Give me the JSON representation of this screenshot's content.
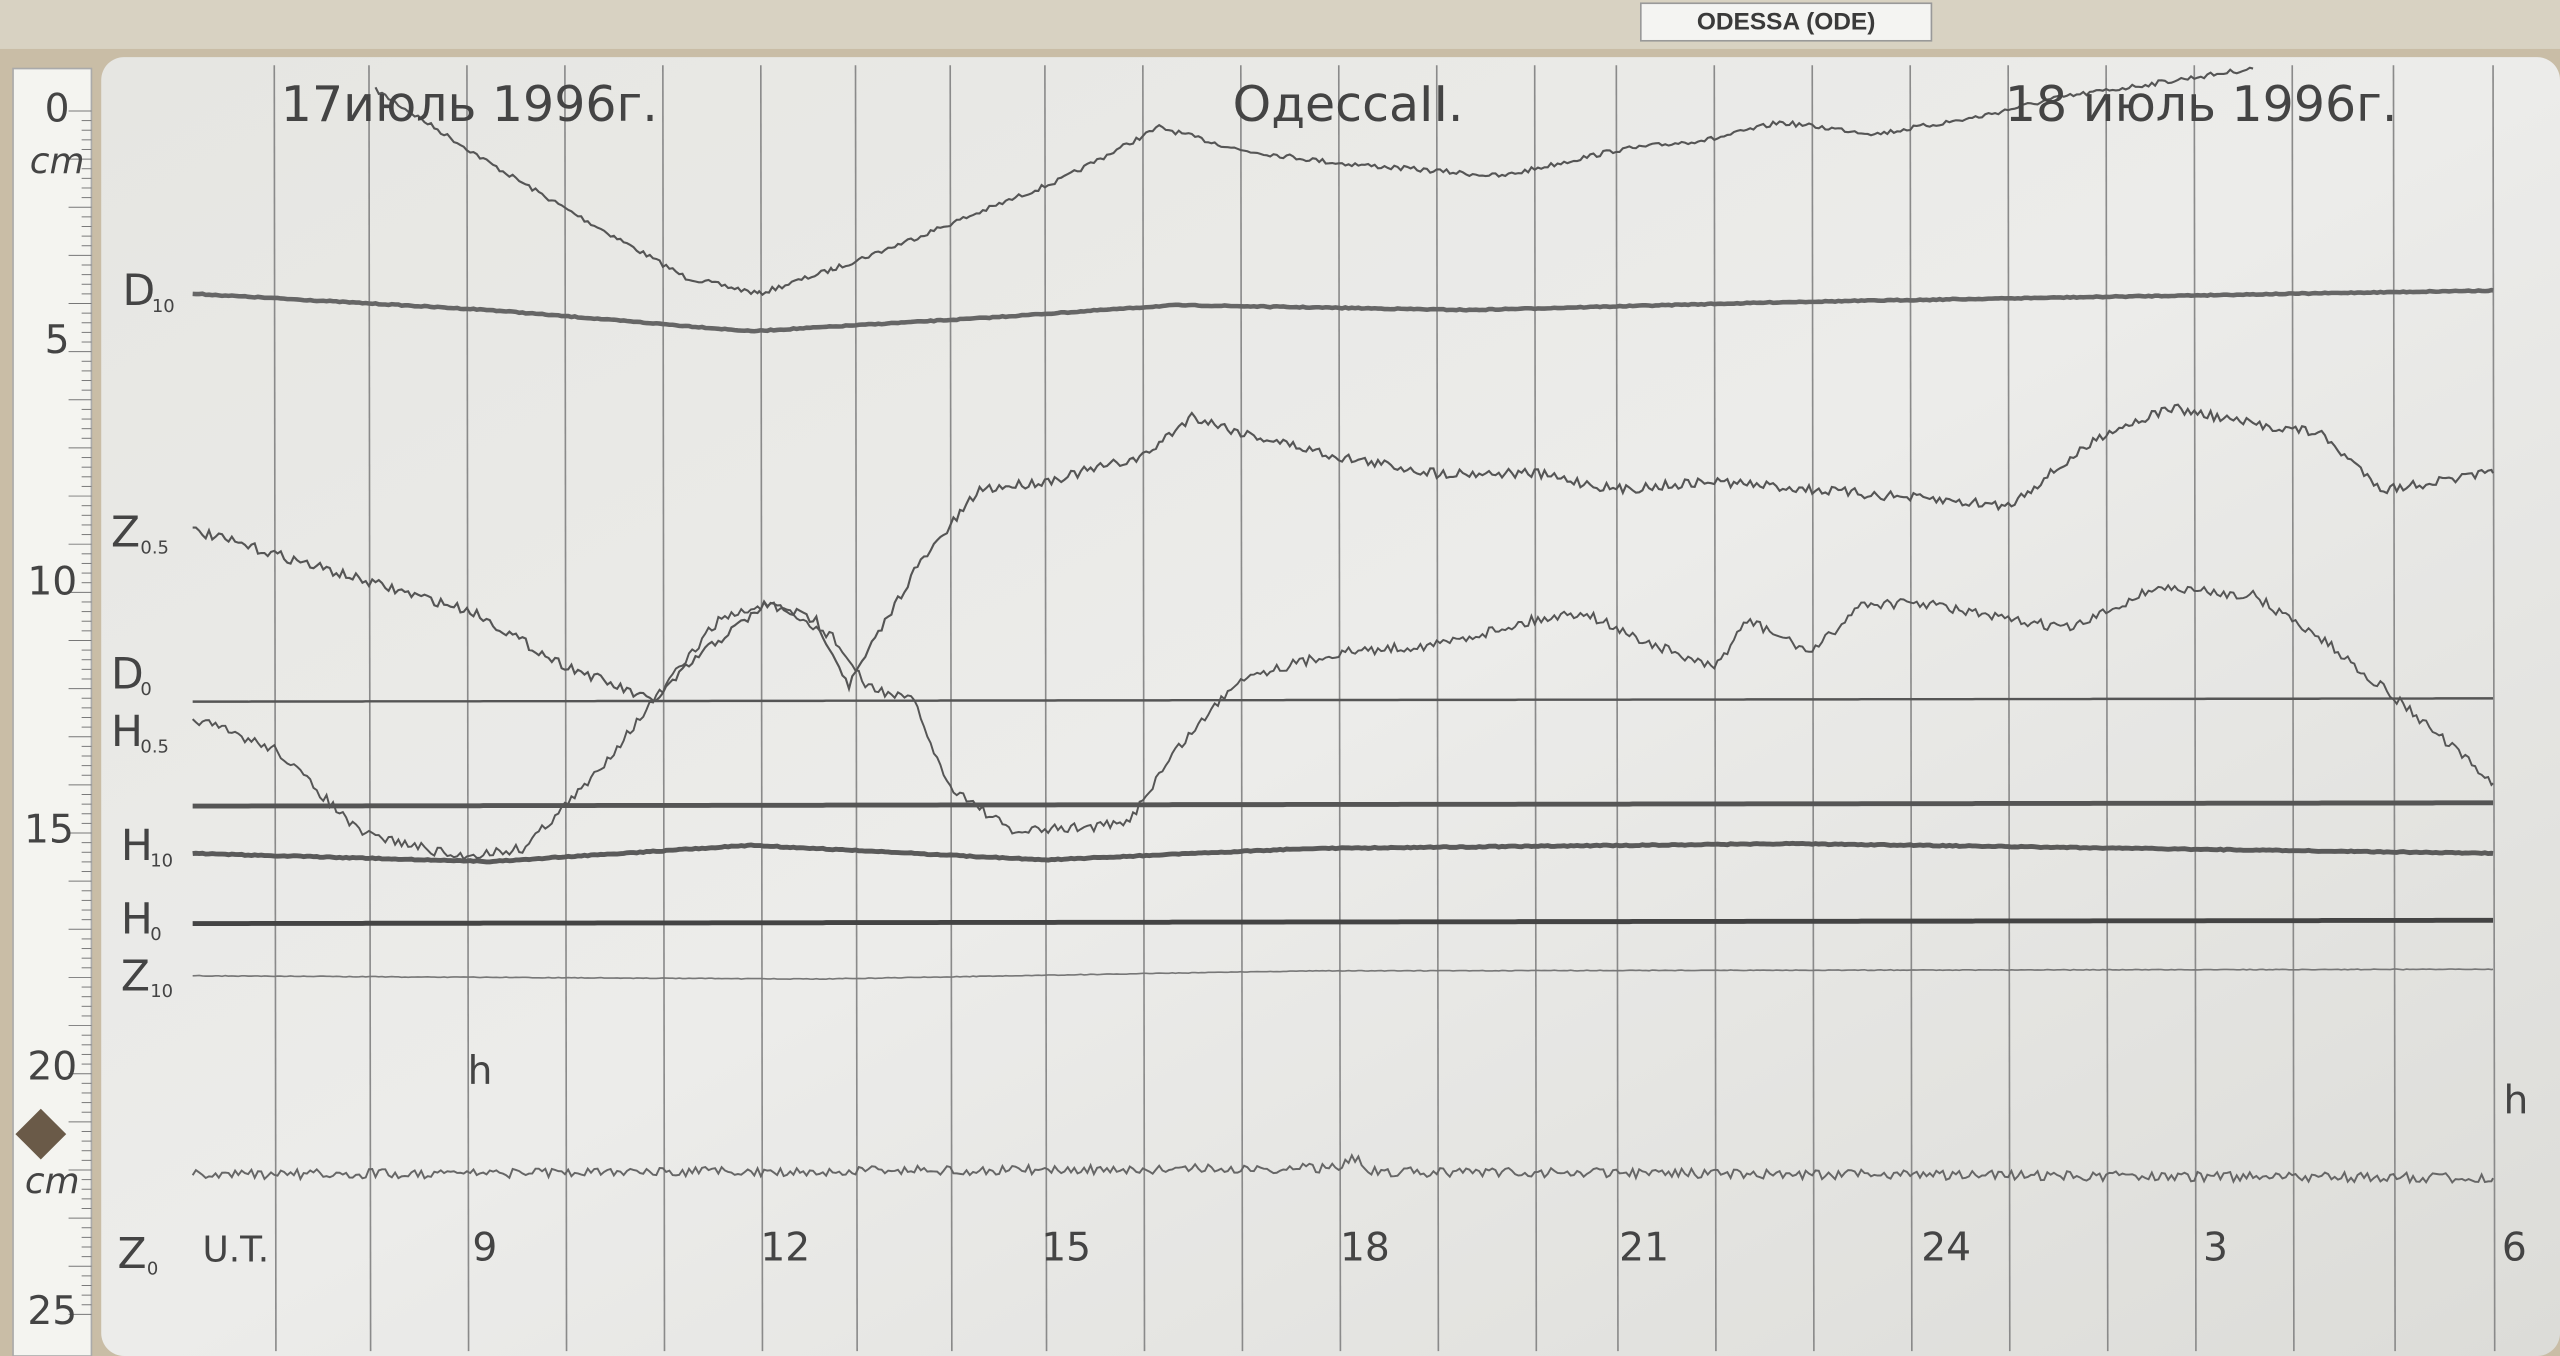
{
  "label_tag": "ODESSA (ODE)",
  "header": {
    "start_date": "17июль 1996г.",
    "station": "ОдессаII.",
    "end_date": "18 июль 1996г."
  },
  "traces": [
    {
      "symbol": "D",
      "subscript": "10"
    },
    {
      "symbol": "Z",
      "subscript": "0.5"
    },
    {
      "symbol": "D",
      "subscript": "0"
    },
    {
      "symbol": "H",
      "subscript": "0.5"
    },
    {
      "symbol": "H",
      "subscript": "10"
    },
    {
      "symbol": "H",
      "subscript": "0"
    },
    {
      "symbol": "Z",
      "subscript": "10"
    },
    {
      "symbol": "Z",
      "subscript": "0"
    }
  ],
  "time_label": "U.T.",
  "hour_unit": [
    "h",
    "h"
  ],
  "hour_labels": [
    "9",
    "12",
    "15",
    "18",
    "21",
    "24",
    "3",
    "6"
  ],
  "ruler": {
    "marks": [
      "0",
      "5",
      "10",
      "15",
      "20",
      "25"
    ],
    "units": [
      "cm",
      "cm"
    ]
  }
}
